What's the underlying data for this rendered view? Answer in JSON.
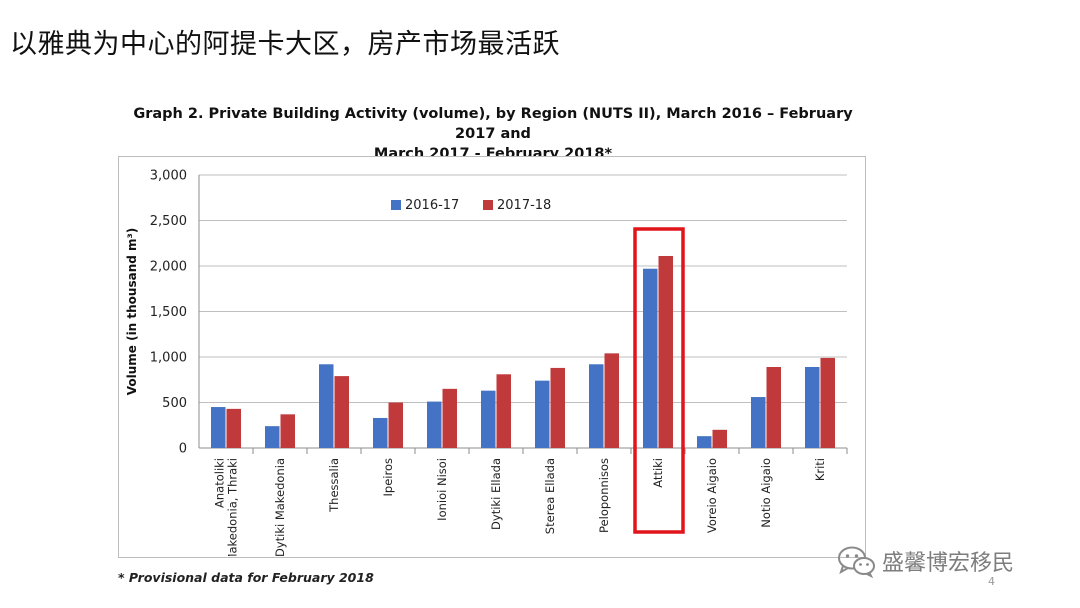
{
  "slide": {
    "title": "以雅典为中心的阿提卡大区，房产市场最活跃",
    "footnote": "* Provisional data for February 2018",
    "page_number": "4",
    "watermark_text": "盛馨博宏移民",
    "watermark_icon": "wechat-logo-icon"
  },
  "chart_data": {
    "type": "bar",
    "title_line1": "Graph 2. Private Building Activity (volume), by Region (NUTS II), March 2016 – February 2017 and",
    "title_line2": "March 2017 - February 2018*",
    "ylabel": "Volume (in thousand m³)",
    "ylim": [
      0,
      3000
    ],
    "yticks": [
      0,
      500,
      1000,
      1500,
      2000,
      2500,
      3000
    ],
    "ytick_labels": [
      "0",
      "500",
      "1,000",
      "1,500",
      "2,000",
      "2,500",
      "3,000"
    ],
    "grid": true,
    "legend_position": "top-center",
    "categories": [
      [
        "Anatoliki",
        "Makedonia, Thraki"
      ],
      [
        "Dytiki Makedonia"
      ],
      [
        "Thessalia"
      ],
      [
        "Ipeiros"
      ],
      [
        "Ionioi Nisoi"
      ],
      [
        "Dytiki Ellada"
      ],
      [
        "Sterea Ellada"
      ],
      [
        "Peloponnisos"
      ],
      [
        "Attiki"
      ],
      [
        "Voreio Aigaio"
      ],
      [
        "Notio Aigaio"
      ],
      [
        "Kriti"
      ]
    ],
    "series": [
      {
        "name": "2016-17",
        "color": "#4472c4",
        "values": [
          450,
          240,
          920,
          330,
          510,
          630,
          740,
          920,
          1970,
          130,
          560,
          890
        ]
      },
      {
        "name": "2017-18",
        "color": "#c0393b",
        "values": [
          430,
          370,
          790,
          500,
          650,
          810,
          880,
          1040,
          2110,
          200,
          890,
          990
        ]
      }
    ],
    "highlight_category": "Attiki",
    "highlight_color": "#e0141b"
  }
}
